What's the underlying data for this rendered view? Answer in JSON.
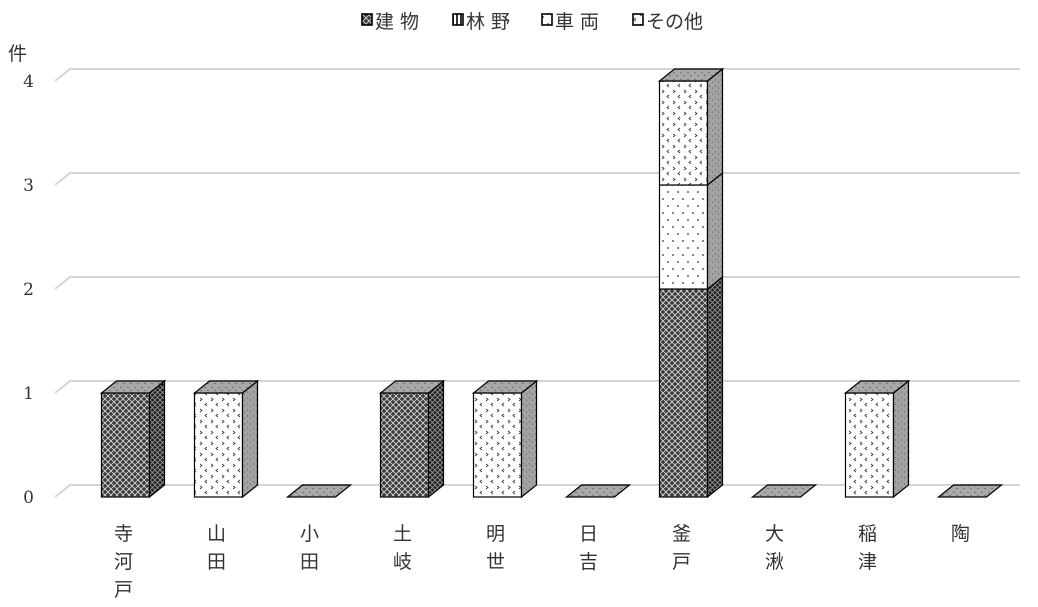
{
  "chart_data": {
    "type": "bar",
    "stacked": true,
    "style": "3d-column",
    "title": "",
    "ylabel": "件",
    "xlabel": "",
    "ylim": [
      0,
      4
    ],
    "yticks": [
      0,
      1,
      2,
      3,
      4
    ],
    "grid": true,
    "legend_position": "top",
    "categories": [
      "寺河戸",
      "山田",
      "小田",
      "土岐",
      "明世",
      "日吉",
      "釜戸",
      "大湫",
      "稲津",
      "陶"
    ],
    "series": [
      {
        "name": "建 物",
        "values": [
          1,
          0,
          0,
          1,
          0,
          0,
          2,
          0,
          0,
          0
        ],
        "pattern": "crosshatch-dark"
      },
      {
        "name": "林 野",
        "values": [
          0,
          0,
          0,
          0,
          0,
          0,
          0,
          0,
          0,
          0
        ],
        "pattern": "vertical-lines"
      },
      {
        "name": "車 両",
        "values": [
          0,
          0,
          0,
          0,
          0,
          0,
          1,
          0,
          0,
          0
        ],
        "pattern": "sparse-dots"
      },
      {
        "name": "その他",
        "values": [
          0,
          1,
          0,
          0,
          1,
          0,
          1,
          0,
          1,
          0
        ],
        "pattern": "arrow-dots"
      }
    ]
  }
}
